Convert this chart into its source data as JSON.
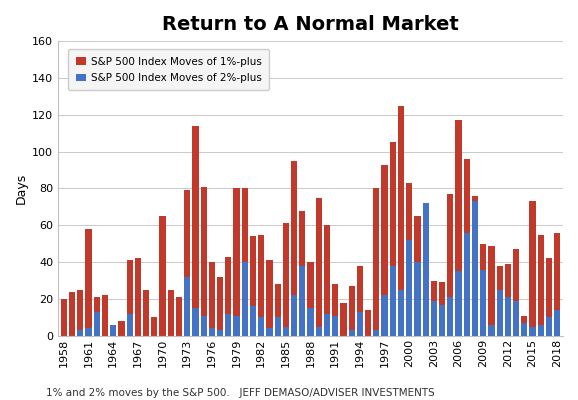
{
  "title": "Return to A Normal Market",
  "ylabel": "Days",
  "xlabel": "",
  "legend1": "S&P 500 Index Moves of 1%-plus",
  "legend2": "S&P 500 Index Moves of 2%-plus",
  "footnote": "1% and 2% moves by the S&P 500.   JEFF DEMASO/ADVISER INVESTMENTS",
  "years": [
    1958,
    1959,
    1960,
    1961,
    1962,
    1963,
    1964,
    1965,
    1966,
    1967,
    1968,
    1969,
    1970,
    1971,
    1972,
    1973,
    1974,
    1975,
    1976,
    1977,
    1978,
    1979,
    1980,
    1981,
    1982,
    1983,
    1984,
    1985,
    1986,
    1987,
    1988,
    1989,
    1990,
    1991,
    1992,
    1993,
    1994,
    1995,
    1996,
    1997,
    1998,
    1999,
    2000,
    2001,
    2002,
    2003,
    2004,
    2005,
    2006,
    2007,
    2008,
    2009,
    2010,
    2011,
    2012,
    2013,
    2014,
    2015,
    2016,
    2017,
    2018
  ],
  "pct1": [
    20,
    24,
    25,
    58,
    21,
    22,
    4,
    8,
    41,
    42,
    25,
    10,
    65,
    25,
    21,
    79,
    114,
    81,
    40,
    32,
    43,
    80,
    80,
    54,
    55,
    41,
    28,
    61,
    95,
    68,
    40,
    75,
    60,
    28,
    18,
    27,
    38,
    14,
    80,
    93,
    105,
    125,
    83,
    65,
    30,
    30,
    29,
    77,
    117,
    96,
    76,
    50,
    49,
    38,
    39,
    47,
    11,
    73,
    55,
    42,
    56
  ],
  "pct2": [
    0,
    0,
    3,
    4,
    13,
    0,
    6,
    0,
    12,
    0,
    0,
    0,
    0,
    0,
    0,
    32,
    15,
    11,
    4,
    3,
    12,
    11,
    40,
    16,
    10,
    4,
    10,
    5,
    22,
    38,
    15,
    5,
    12,
    11,
    0,
    3,
    13,
    0,
    3,
    22,
    38,
    25,
    52,
    40,
    72,
    19,
    17,
    21,
    35,
    56,
    73,
    36,
    6,
    25,
    21,
    19,
    7,
    5,
    6,
    10,
    14
  ],
  "color1": "#c0392b",
  "color2": "#4472c4",
  "ylim": [
    0,
    160
  ],
  "yticks": [
    0,
    20,
    40,
    60,
    80,
    100,
    120,
    140,
    160
  ],
  "background_color": "#ffffff",
  "title_fontsize": 14,
  "footnote_fontsize": 7.5
}
